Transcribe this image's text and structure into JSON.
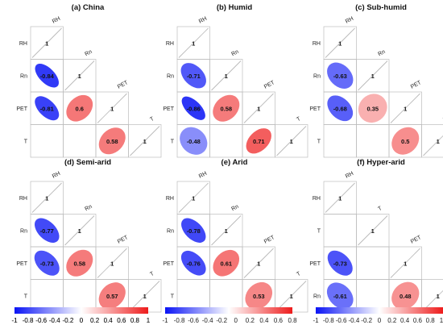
{
  "chart_data": [
    {
      "type": "heatmap",
      "title": "(a) China",
      "variables": [
        "RH",
        "Rn",
        "PET",
        "T"
      ],
      "lower_triangle": [
        [
          1
        ],
        [
          -0.84,
          1
        ],
        [
          -0.81,
          0.6,
          1
        ],
        [
          null,
          null,
          0.58,
          1
        ]
      ],
      "colorbar_ticks": [
        "-1",
        "-0.8",
        "-0.6",
        "-0.4",
        "-0.2",
        "0",
        "0.2",
        "0.4",
        "0.6",
        "0.8",
        "1"
      ]
    },
    {
      "type": "heatmap",
      "title": "(b) Humid",
      "variables": [
        "RH",
        "Rn",
        "PET",
        "T"
      ],
      "lower_triangle": [
        [
          1
        ],
        [
          -0.71,
          1
        ],
        [
          -0.86,
          0.58,
          1
        ],
        [
          -0.48,
          null,
          0.71,
          1
        ]
      ]
    },
    {
      "type": "heatmap",
      "title": "(c) Sub-humid",
      "variables": [
        "RH",
        "Rn",
        "PET",
        "T"
      ],
      "lower_triangle": [
        [
          1
        ],
        [
          -0.63,
          1
        ],
        [
          -0.68,
          0.35,
          1
        ],
        [
          null,
          null,
          0.5,
          1
        ]
      ]
    },
    {
      "type": "heatmap",
      "title": "(d) Semi-arid",
      "variables": [
        "RH",
        "Rn",
        "PET",
        "T"
      ],
      "lower_triangle": [
        [
          1
        ],
        [
          -0.77,
          1
        ],
        [
          -0.73,
          0.58,
          1
        ],
        [
          null,
          null,
          0.57,
          1
        ]
      ],
      "colorbar_ticks": [
        "-1",
        "-0.8",
        "-0.6",
        "-0.4",
        "-0.2",
        "0",
        "0.2",
        "0.4",
        "0.6",
        "0.8",
        "1"
      ]
    },
    {
      "type": "heatmap",
      "title": "(e) Arid",
      "variables": [
        "RH",
        "Rn",
        "PET",
        "T"
      ],
      "lower_triangle": [
        [
          1
        ],
        [
          -0.78,
          1
        ],
        [
          -0.76,
          0.61,
          1
        ],
        [
          null,
          null,
          0.53,
          1
        ]
      ],
      "colorbar_ticks": [
        "-1",
        "-0.8",
        "-0.6",
        "-0.4",
        "-0.2",
        "0",
        "0.2",
        "0.4",
        "0.6",
        "0.8"
      ]
    },
    {
      "type": "heatmap",
      "title": "(f) Hyper-arid",
      "variables": [
        "RH",
        "T",
        "PET",
        "Rn"
      ],
      "lower_triangle": [
        [
          1
        ],
        [
          null,
          1
        ],
        [
          -0.73,
          null,
          1
        ],
        [
          -0.61,
          null,
          0.48,
          1
        ]
      ],
      "colorbar_ticks": [
        "-1",
        "-0.8",
        "-0.6",
        "-0.4",
        "-0.2",
        "0",
        "0.2",
        "0.4",
        "0.6",
        "0.8",
        "1"
      ]
    }
  ],
  "colors": {
    "negative": "#0a14f5",
    "neutral": "#ffffff",
    "positive": "#ee1c1c",
    "grid": "#bdbdbd",
    "text": "#111111"
  }
}
